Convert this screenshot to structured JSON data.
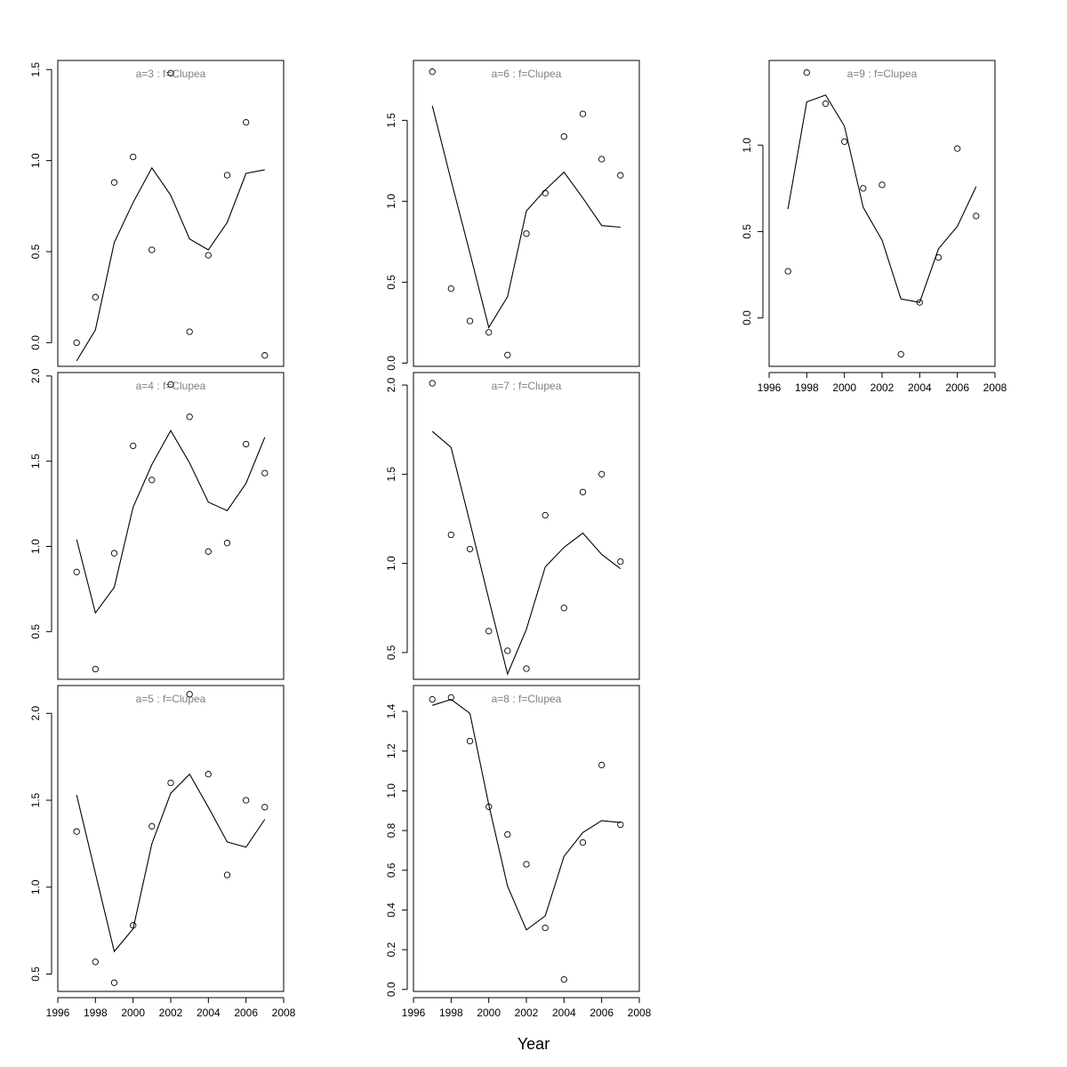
{
  "figure": {
    "xlabel": "Year",
    "colors": {
      "line": "#000000",
      "points": "#000000",
      "title": "#808080",
      "background": "#ffffff"
    }
  },
  "chart_data": [
    {
      "type": "line",
      "title": "a=3  :  f=Clupea",
      "x": [
        1997,
        1998,
        1999,
        2000,
        2001,
        2002,
        2003,
        2004,
        2005,
        2006,
        2007
      ],
      "series": [
        {
          "style": "line",
          "values": [
            -0.1,
            0.07,
            0.55,
            0.77,
            0.96,
            0.81,
            0.57,
            0.51,
            0.66,
            0.93,
            0.95
          ]
        },
        {
          "style": "points",
          "values": [
            0.0,
            0.25,
            0.88,
            1.02,
            0.51,
            1.48,
            0.06,
            0.48,
            0.92,
            1.21,
            -0.07
          ]
        }
      ],
      "xlim": [
        1996,
        2008
      ],
      "ylim": [
        -0.13,
        1.55
      ],
      "xticks": [],
      "yticks": [
        0.0,
        0.5,
        1.0,
        1.5
      ],
      "ytick_labels": [
        "0.0",
        "0.5",
        "1.0",
        "1.5"
      ]
    },
    {
      "type": "line",
      "title": "a=4  :  f=Clupea",
      "x": [
        1997,
        1998,
        1999,
        2000,
        2001,
        2002,
        2003,
        2004,
        2005,
        2006,
        2007
      ],
      "series": [
        {
          "style": "line",
          "values": [
            1.04,
            0.61,
            0.76,
            1.23,
            1.48,
            1.68,
            1.49,
            1.26,
            1.21,
            1.37,
            1.64
          ]
        },
        {
          "style": "points",
          "values": [
            0.85,
            0.28,
            0.96,
            1.59,
            1.39,
            1.95,
            1.76,
            0.97,
            1.02,
            1.6,
            1.43
          ]
        }
      ],
      "xlim": [
        1996,
        2008
      ],
      "ylim": [
        0.22,
        2.02
      ],
      "xticks": [],
      "yticks": [
        0.5,
        1.0,
        1.5,
        2.0
      ],
      "ytick_labels": [
        "0.5",
        "1.0",
        "1.5",
        "2.0"
      ]
    },
    {
      "type": "line",
      "title": "a=5  :  f=Clupea",
      "x": [
        1997,
        1998,
        1999,
        2000,
        2001,
        2002,
        2003,
        2004,
        2005,
        2006,
        2007
      ],
      "series": [
        {
          "style": "line",
          "values": [
            1.53,
            1.08,
            0.63,
            0.76,
            1.25,
            1.54,
            1.65,
            1.46,
            1.26,
            1.23,
            1.39
          ]
        },
        {
          "style": "points",
          "values": [
            1.32,
            0.57,
            0.45,
            0.78,
            1.35,
            1.6,
            2.11,
            1.65,
            1.07,
            1.5,
            1.46
          ]
        }
      ],
      "xlim": [
        1996,
        2008
      ],
      "ylim": [
        0.4,
        2.16
      ],
      "xticks": [
        1996,
        1998,
        2000,
        2002,
        2004,
        2006,
        2008
      ],
      "xtick_labels": [
        "1996",
        "1998",
        "2000",
        "2002",
        "2004",
        "2006",
        "2008"
      ],
      "yticks": [
        0.5,
        1.0,
        1.5,
        2.0
      ],
      "ytick_labels": [
        "0.5",
        "1.0",
        "1.5",
        "2.0"
      ]
    },
    {
      "type": "line",
      "title": "a=6  :  f=Clupea",
      "x": [
        1997,
        1998,
        1999,
        2000,
        2001,
        2002,
        2003,
        2004,
        2005,
        2006,
        2007
      ],
      "series": [
        {
          "style": "line",
          "values": [
            1.59,
            1.13,
            0.68,
            0.22,
            0.41,
            0.94,
            1.07,
            1.18,
            1.02,
            0.85,
            0.84
          ]
        },
        {
          "style": "points",
          "values": [
            1.8,
            0.46,
            0.26,
            0.19,
            0.05,
            0.8,
            1.05,
            1.4,
            1.54,
            1.26,
            1.16
          ]
        }
      ],
      "xlim": [
        1996,
        2008
      ],
      "ylim": [
        -0.02,
        1.87
      ],
      "xticks": [],
      "yticks": [
        0.0,
        0.5,
        1.0,
        1.5
      ],
      "ytick_labels": [
        "0.0",
        "0.5",
        "1.0",
        "1.5"
      ]
    },
    {
      "type": "line",
      "title": "a=7  :  f=Clupea",
      "x": [
        1997,
        1998,
        1999,
        2000,
        2001,
        2002,
        2003,
        2004,
        2005,
        2006,
        2007
      ],
      "series": [
        {
          "style": "line",
          "values": [
            1.74,
            1.65,
            1.23,
            0.8,
            0.38,
            0.63,
            0.98,
            1.09,
            1.17,
            1.05,
            0.97
          ]
        },
        {
          "style": "points",
          "values": [
            2.01,
            1.16,
            1.08,
            0.62,
            0.51,
            0.41,
            1.27,
            0.75,
            1.4,
            1.5,
            1.01
          ]
        }
      ],
      "xlim": [
        1996,
        2008
      ],
      "ylim": [
        0.35,
        2.07
      ],
      "xticks": [],
      "yticks": [
        0.5,
        1.0,
        1.5,
        2.0
      ],
      "ytick_labels": [
        "0.5",
        "1.0",
        "1.5",
        "2.0"
      ]
    },
    {
      "type": "line",
      "title": "a=8  :  f=Clupea",
      "x": [
        1997,
        1998,
        1999,
        2000,
        2001,
        2002,
        2003,
        2004,
        2005,
        2006,
        2007
      ],
      "series": [
        {
          "style": "line",
          "values": [
            1.43,
            1.46,
            1.39,
            0.93,
            0.52,
            0.3,
            0.37,
            0.67,
            0.79,
            0.85,
            0.84
          ]
        },
        {
          "style": "points",
          "values": [
            1.46,
            1.47,
            1.25,
            0.92,
            0.78,
            0.63,
            0.31,
            0.05,
            0.74,
            1.13,
            0.83
          ]
        }
      ],
      "xlim": [
        1996,
        2008
      ],
      "ylim": [
        -0.01,
        1.53
      ],
      "xticks": [
        1996,
        1998,
        2000,
        2002,
        2004,
        2006,
        2008
      ],
      "xtick_labels": [
        "1996",
        "1998",
        "2000",
        "2002",
        "2004",
        "2006",
        "2008"
      ],
      "yticks": [
        0.0,
        0.2,
        0.4,
        0.6,
        0.8,
        1.0,
        1.2,
        1.4
      ],
      "ytick_labels": [
        "0.0",
        "0.2",
        "0.4",
        "0.6",
        "0.8",
        "1.0",
        "1.2",
        "1.4"
      ]
    },
    {
      "type": "line",
      "title": "a=9  :  f=Clupea",
      "x": [
        1997,
        1998,
        1999,
        2000,
        2001,
        2002,
        2003,
        2004,
        2005,
        2006,
        2007
      ],
      "series": [
        {
          "style": "line",
          "values": [
            0.63,
            1.25,
            1.29,
            1.11,
            0.64,
            0.45,
            0.11,
            0.09,
            0.4,
            0.53,
            0.76
          ]
        },
        {
          "style": "points",
          "values": [
            0.27,
            1.42,
            1.24,
            1.02,
            0.75,
            0.77,
            -0.21,
            0.09,
            0.35,
            0.98,
            0.59
          ]
        }
      ],
      "xlim": [
        1996,
        2008
      ],
      "ylim": [
        -0.28,
        1.49
      ],
      "xticks": [
        1996,
        1998,
        2000,
        2002,
        2004,
        2006,
        2008
      ],
      "xtick_labels": [
        "1996",
        "1998",
        "2000",
        "2002",
        "2004",
        "2006",
        "2008"
      ],
      "yticks": [
        0.0,
        0.5,
        1.0
      ],
      "ytick_labels": [
        "0.0",
        "0.5",
        "1.0"
      ]
    }
  ]
}
